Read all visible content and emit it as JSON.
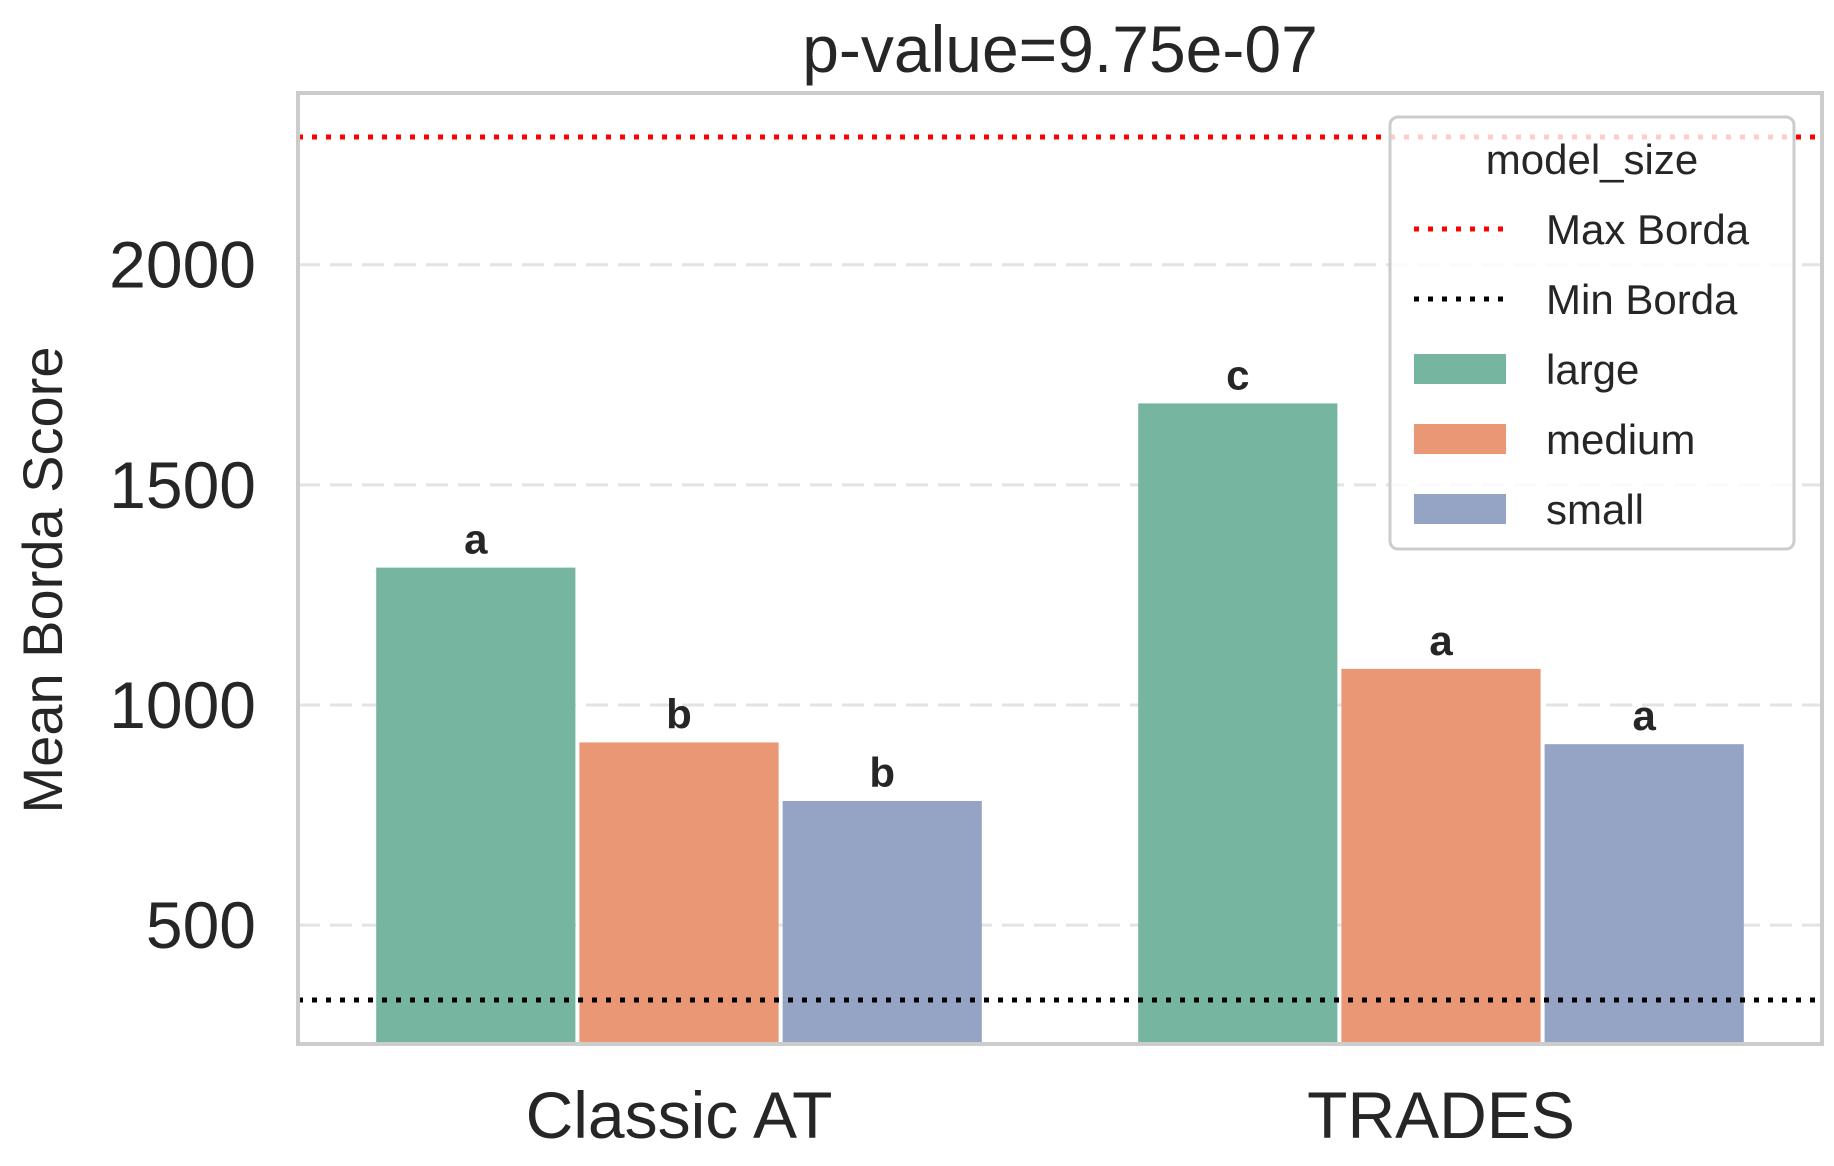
{
  "chart_data": {
    "type": "bar",
    "title": "p-value=9.75e-07",
    "xlabel": "",
    "ylabel": "Mean Borda Score",
    "categories": [
      "Classic AT",
      "TRADES"
    ],
    "yticks": [
      "500",
      "1000",
      "1500",
      "2000"
    ],
    "ylim": [
      230,
      2390
    ],
    "grid": "horizontal dashed",
    "legend": {
      "title": "model_size",
      "placement": "top-right",
      "entries": [
        {
          "label": "Max Borda",
          "kind": "line",
          "color": "#ff0000"
        },
        {
          "label": "Min Borda",
          "kind": "line",
          "color": "#000000"
        },
        {
          "label": "large",
          "kind": "patch",
          "color": "#76b6a1"
        },
        {
          "label": "medium",
          "kind": "patch",
          "color": "#e99775"
        },
        {
          "label": "small",
          "kind": "patch",
          "color": "#95a4c4"
        }
      ]
    },
    "series": [
      {
        "name": "large",
        "color": "#76b6a1",
        "values": [
          1312,
          1685
        ],
        "labels": [
          "a",
          "c"
        ]
      },
      {
        "name": "medium",
        "color": "#e99775",
        "values": [
          915,
          1082
        ],
        "labels": [
          "b",
          "a"
        ]
      },
      {
        "name": "small",
        "color": "#95a4c4",
        "values": [
          782,
          911
        ],
        "labels": [
          "b",
          "a"
        ]
      }
    ],
    "reference_lines": [
      {
        "name": "Max Borda",
        "value": 2290,
        "color": "#ff0000",
        "style": "dotted"
      },
      {
        "name": "Min Borda",
        "value": 330,
        "color": "#000000",
        "style": "dotted"
      }
    ]
  }
}
